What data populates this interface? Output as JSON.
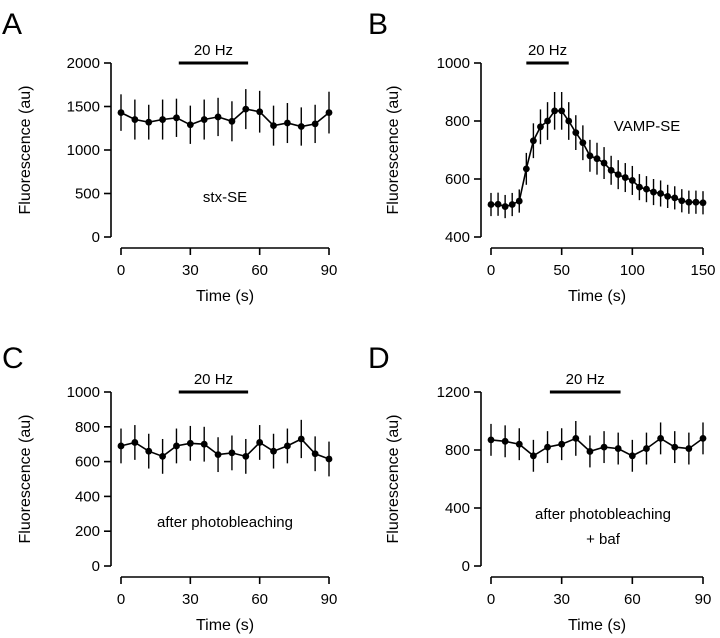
{
  "chart_data": [
    {
      "type": "line",
      "panel": "A",
      "xlabel": "Time (s)",
      "ylabel": "Fluorescence (au)",
      "xlim": [
        0,
        90
      ],
      "ylim": [
        0,
        2000
      ],
      "xticks": [
        0,
        30,
        60,
        90
      ],
      "yticks": [
        0,
        500,
        1000,
        1500,
        2000
      ],
      "stim": {
        "label": "20 Hz",
        "start": 25,
        "end": 55
      },
      "annotation": "stx-SE",
      "series": [
        {
          "x": [
            0,
            6,
            12,
            18,
            24,
            30,
            36,
            42,
            48,
            54,
            60,
            66,
            72,
            78,
            84,
            90
          ],
          "y": [
            1430,
            1350,
            1320,
            1350,
            1370,
            1290,
            1350,
            1380,
            1330,
            1470,
            1440,
            1280,
            1310,
            1270,
            1300,
            1430
          ],
          "err": [
            210,
            230,
            200,
            230,
            220,
            220,
            230,
            220,
            230,
            230,
            240,
            230,
            230,
            220,
            220,
            240
          ]
        }
      ]
    },
    {
      "type": "line",
      "panel": "B",
      "xlabel": "Time (s)",
      "ylabel": "Fluorescence (au)",
      "xlim": [
        0,
        150
      ],
      "ylim": [
        400,
        1000
      ],
      "xticks": [
        0,
        50,
        100,
        150
      ],
      "yticks": [
        400,
        600,
        800,
        1000
      ],
      "stim": {
        "label": "20 Hz",
        "start": 25,
        "end": 55
      },
      "annotation": "VAMP-SE",
      "series": [
        {
          "x": [
            0,
            5,
            10,
            15,
            20,
            25,
            30,
            35,
            40,
            45,
            50,
            55,
            60,
            65,
            70,
            75,
            80,
            85,
            90,
            95,
            100,
            105,
            110,
            115,
            120,
            125,
            130,
            135,
            140,
            145,
            150
          ],
          "y": [
            512,
            513,
            505,
            512,
            524,
            635,
            732,
            780,
            800,
            835,
            835,
            800,
            760,
            725,
            680,
            670,
            655,
            630,
            615,
            605,
            595,
            572,
            565,
            555,
            550,
            540,
            535,
            525,
            520,
            520,
            518
          ],
          "err": [
            40,
            40,
            40,
            40,
            40,
            55,
            60,
            60,
            65,
            65,
            65,
            65,
            60,
            60,
            55,
            55,
            55,
            50,
            50,
            50,
            50,
            45,
            45,
            45,
            45,
            40,
            40,
            40,
            40,
            40,
            40
          ]
        }
      ]
    },
    {
      "type": "line",
      "panel": "C",
      "xlabel": "Time (s)",
      "ylabel": "Fluorescence (au)",
      "xlim": [
        0,
        90
      ],
      "ylim": [
        0,
        1000
      ],
      "xticks": [
        0,
        30,
        60,
        90
      ],
      "yticks": [
        0,
        200,
        400,
        600,
        800,
        1000
      ],
      "stim": {
        "label": "20 Hz",
        "start": 25,
        "end": 55
      },
      "annotation": "after photobleaching",
      "series": [
        {
          "x": [
            0,
            6,
            12,
            18,
            24,
            30,
            36,
            42,
            48,
            54,
            60,
            66,
            72,
            78,
            84,
            90
          ],
          "y": [
            690,
            710,
            660,
            630,
            690,
            705,
            700,
            640,
            650,
            630,
            710,
            660,
            690,
            730,
            645,
            615
          ],
          "err": [
            100,
            100,
            100,
            100,
            100,
            100,
            100,
            100,
            100,
            100,
            100,
            100,
            100,
            110,
            100,
            100
          ]
        }
      ]
    },
    {
      "type": "line",
      "panel": "D",
      "xlabel": "Time (s)",
      "ylabel": "Fluorescence (au)",
      "xlim": [
        0,
        90
      ],
      "ylim": [
        0,
        1200
      ],
      "xticks": [
        0,
        30,
        60,
        90
      ],
      "yticks": [
        0,
        400,
        800,
        1200
      ],
      "stim": {
        "label": "20 Hz",
        "start": 25,
        "end": 55
      },
      "annotation": [
        "after photobleaching",
        "+ baf"
      ],
      "series": [
        {
          "x": [
            0,
            6,
            12,
            18,
            24,
            30,
            36,
            42,
            48,
            54,
            60,
            66,
            72,
            78,
            84,
            90
          ],
          "y": [
            870,
            860,
            840,
            760,
            820,
            840,
            880,
            790,
            820,
            810,
            760,
            810,
            880,
            820,
            810,
            880
          ],
          "err": [
            110,
            110,
            110,
            110,
            110,
            110,
            120,
            110,
            110,
            110,
            110,
            110,
            110,
            110,
            110,
            110
          ]
        }
      ]
    }
  ],
  "labels": {
    "panelA": "A",
    "panelB": "B",
    "panelC": "C",
    "panelD": "D"
  }
}
